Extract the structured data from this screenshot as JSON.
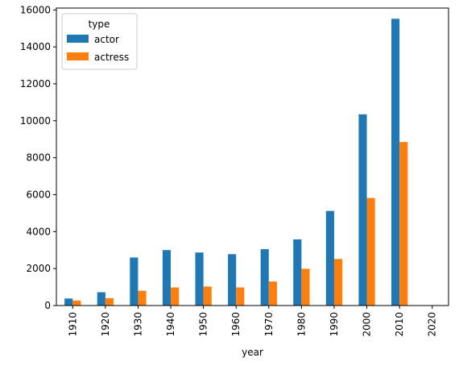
{
  "chart_data": {
    "type": "bar",
    "xlabel": "year",
    "ylabel": "",
    "categories": [
      "1910",
      "1920",
      "1930",
      "1940",
      "1950",
      "1960",
      "1970",
      "1980",
      "1990",
      "2000",
      "2010",
      "2020"
    ],
    "series": [
      {
        "name": "actor",
        "color": "#1f77b4",
        "values": [
          380,
          720,
          2600,
          3000,
          2870,
          2780,
          3050,
          3580,
          5120,
          10350,
          15520,
          0
        ]
      },
      {
        "name": "actress",
        "color": "#ff7f0e",
        "values": [
          270,
          400,
          800,
          980,
          1030,
          980,
          1300,
          1990,
          2520,
          5820,
          8850,
          0
        ]
      }
    ],
    "ylim": [
      0,
      16100
    ],
    "yticks": [
      0,
      2000,
      4000,
      6000,
      8000,
      10000,
      12000,
      14000,
      16000
    ],
    "legend": {
      "title": "type",
      "position": "top-left"
    },
    "grid": false
  }
}
